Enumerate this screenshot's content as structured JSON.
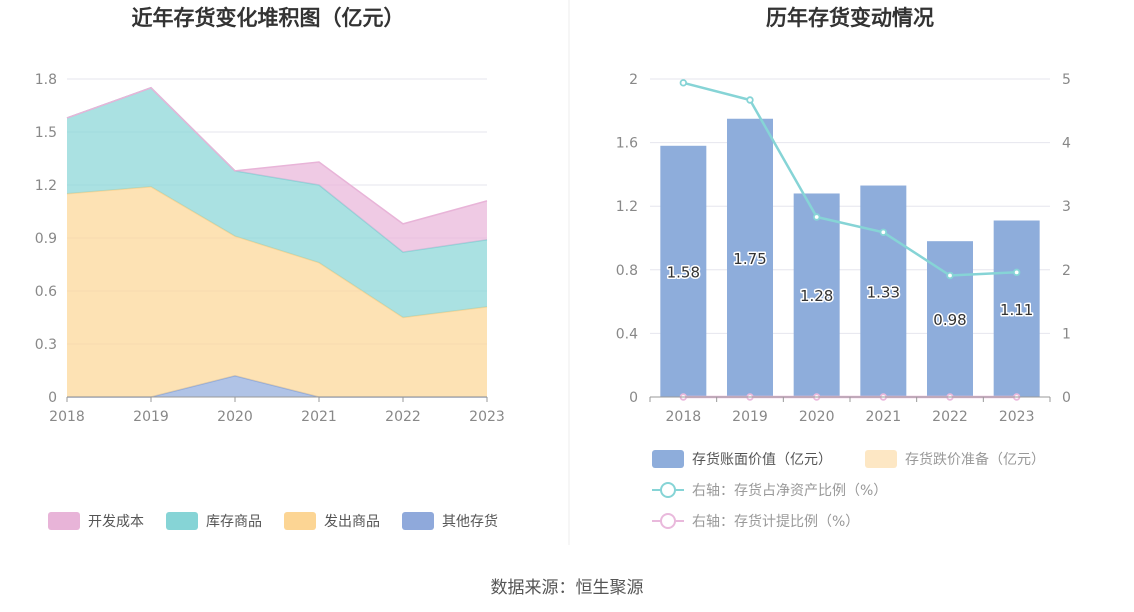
{
  "source_label": "数据来源：恒生聚源",
  "chart_data": [
    {
      "type": "area",
      "stacked": true,
      "title": "近年存货变化堆积图（亿元）",
      "categories": [
        "2018",
        "2019",
        "2020",
        "2021",
        "2022",
        "2023"
      ],
      "ylim": [
        0,
        1.8
      ],
      "yticks": [
        "0",
        "0.3",
        "0.6",
        "0.9",
        "1.2",
        "1.5",
        "1.8"
      ],
      "grid": true,
      "legend": "bottom",
      "series": [
        {
          "name": "其他存货",
          "color": "#8fa9db",
          "values": [
            0,
            0,
            0.12,
            0,
            0,
            0
          ]
        },
        {
          "name": "发出商品",
          "color": "#fcd594",
          "values": [
            1.15,
            1.19,
            0.79,
            0.76,
            0.45,
            0.51
          ]
        },
        {
          "name": "库存商品",
          "color": "#86d4d6",
          "values": [
            0.43,
            0.56,
            0.37,
            0.44,
            0.37,
            0.38
          ]
        },
        {
          "name": "开发成本",
          "color": "#e8b4d8",
          "values": [
            0,
            0,
            0,
            0.13,
            0.16,
            0.22
          ]
        }
      ],
      "legend_order": [
        "开发成本",
        "库存商品",
        "发出商品",
        "其他存货"
      ]
    },
    {
      "type": "bar",
      "title": "历年存货变动情况",
      "categories": [
        "2018",
        "2019",
        "2020",
        "2021",
        "2022",
        "2023"
      ],
      "ylim": [
        0,
        2
      ],
      "yticks": [
        "0",
        "0.4",
        "0.8",
        "1.2",
        "1.6",
        "2"
      ],
      "y2lim": [
        0,
        5
      ],
      "y2ticks": [
        "0",
        "1",
        "2",
        "3",
        "4",
        "5"
      ],
      "grid": true,
      "legend": "bottom",
      "bars": [
        {
          "name": "存货账面价值（亿元）",
          "color": "#8eaddb",
          "values": [
            1.58,
            1.75,
            1.28,
            1.33,
            0.98,
            1.11
          ],
          "labels": [
            "1.58",
            "1.75",
            "1.28",
            "1.33",
            "0.98",
            "1.11"
          ]
        },
        {
          "name": "存货跌价准备（亿元）",
          "color": "#fde7c4",
          "values": [
            0,
            0,
            0,
            0,
            0,
            0
          ]
        }
      ],
      "lines": [
        {
          "name": "右轴：存货占净资产比例（%）",
          "color": "#86d4d6",
          "values": [
            4.94,
            4.67,
            2.83,
            2.59,
            1.91,
            1.96
          ]
        },
        {
          "name": "右轴：存货计提比例（%）",
          "color": "#e9b9dc",
          "values": [
            0,
            0,
            0,
            0,
            0,
            0
          ]
        }
      ]
    }
  ]
}
